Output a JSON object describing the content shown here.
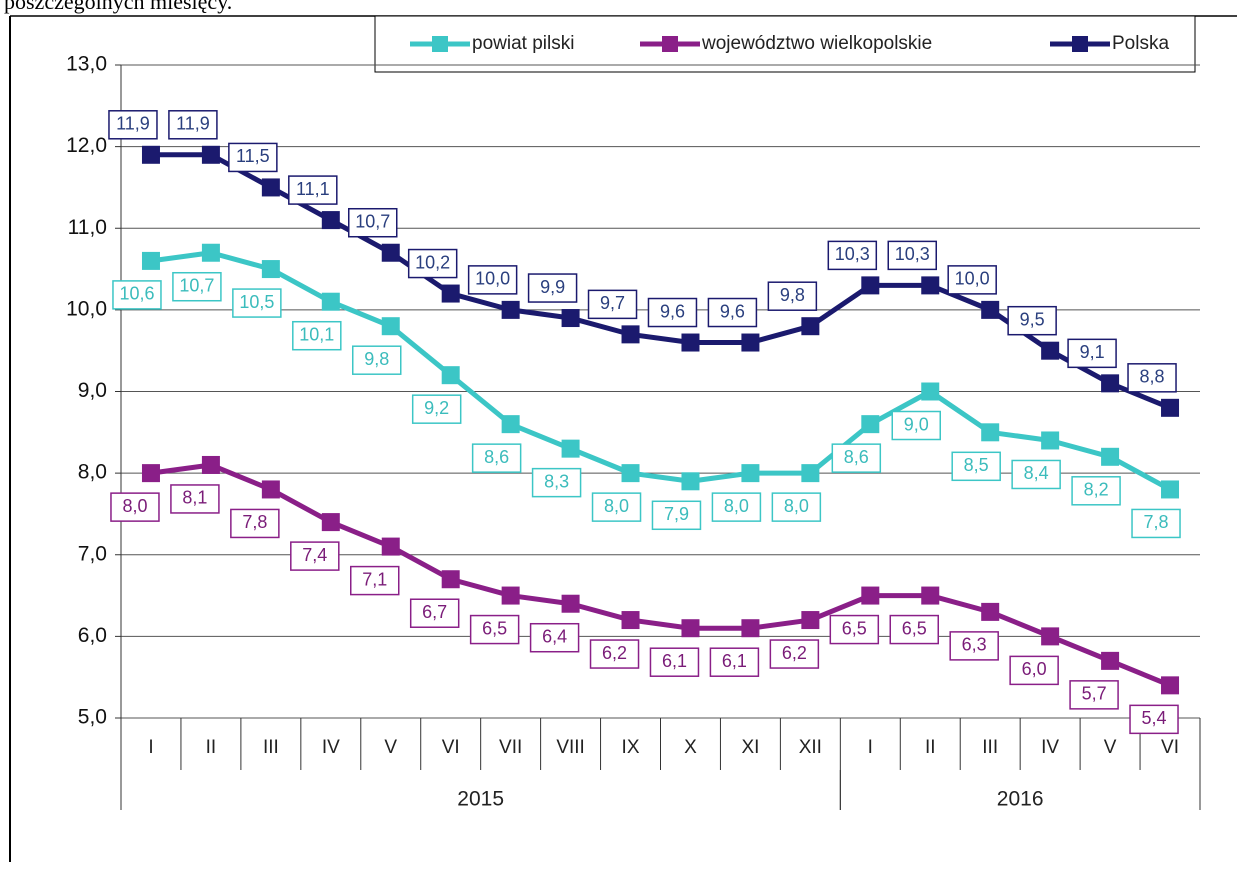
{
  "caption": "poszczególnych miesięcy.",
  "chart_data": {
    "type": "line",
    "categories": [
      "I",
      "II",
      "III",
      "IV",
      "V",
      "VI",
      "VII",
      "VIII",
      "IX",
      "X",
      "XI",
      "XII",
      "I",
      "II",
      "III",
      "IV",
      "V",
      "VI"
    ],
    "groups": [
      {
        "label": "2015",
        "span": 12
      },
      {
        "label": "2016",
        "span": 6
      }
    ],
    "ylim": [
      5,
      13
    ],
    "yticks": [
      {
        "value": 5,
        "label": "5,0"
      },
      {
        "value": 6,
        "label": "6,0"
      },
      {
        "value": 7,
        "label": "7,0"
      },
      {
        "value": 8,
        "label": "8,0"
      },
      {
        "value": 9,
        "label": "9,0"
      },
      {
        "value": 10,
        "label": "10,0"
      },
      {
        "value": 11,
        "label": "11,0"
      },
      {
        "value": 12,
        "label": "12,0"
      },
      {
        "value": 13,
        "label": "13,0"
      }
    ],
    "grid": true,
    "legend": "top-right",
    "series": [
      {
        "name": "powiat pilski",
        "color": "#3cc6c6",
        "values": [
          10.6,
          10.7,
          10.5,
          10.1,
          9.8,
          9.2,
          8.6,
          8.3,
          8.0,
          7.9,
          8.0,
          8.0,
          8.6,
          9.0,
          8.5,
          8.4,
          8.2,
          7.8
        ],
        "value_labels": [
          "10,6",
          "10,7",
          "10,5",
          "10,1",
          "9,8",
          "9,2",
          "8,6",
          "8,3",
          "8,0",
          "7,9",
          "8,0",
          "8,0",
          "8,6",
          "9,0",
          "8,5",
          "8,4",
          "8,2",
          "7,8"
        ]
      },
      {
        "name": "województwo wielkopolskie",
        "color": "#8a1f88",
        "values": [
          8.0,
          8.1,
          7.8,
          7.4,
          7.1,
          6.7,
          6.5,
          6.4,
          6.2,
          6.1,
          6.1,
          6.2,
          6.5,
          6.5,
          6.3,
          6.0,
          5.7,
          5.4
        ],
        "value_labels": [
          "8,0",
          "8,1",
          "7,8",
          "7,4",
          "7,1",
          "6,7",
          "6,5",
          "6,4",
          "6,2",
          "6,1",
          "6,1",
          "6,2",
          "6,5",
          "6,5",
          "6,3",
          "6,0",
          "5,7",
          "5,4"
        ]
      },
      {
        "name": "Polska",
        "color": "#1b1a6e",
        "values": [
          11.9,
          11.9,
          11.5,
          11.1,
          10.7,
          10.2,
          10.0,
          9.9,
          9.7,
          9.6,
          9.6,
          9.8,
          10.3,
          10.3,
          10.0,
          9.5,
          9.1,
          8.8
        ],
        "value_labels": [
          "11,9",
          "11,9",
          "11,5",
          "11,1",
          "10,7",
          "10,2",
          "10,0",
          "9,9",
          "9,7",
          "9,6",
          "9,6",
          "9,8",
          "10,3",
          "10,3",
          "10,0",
          "9,5",
          "9,1",
          "8,8"
        ]
      }
    ]
  }
}
